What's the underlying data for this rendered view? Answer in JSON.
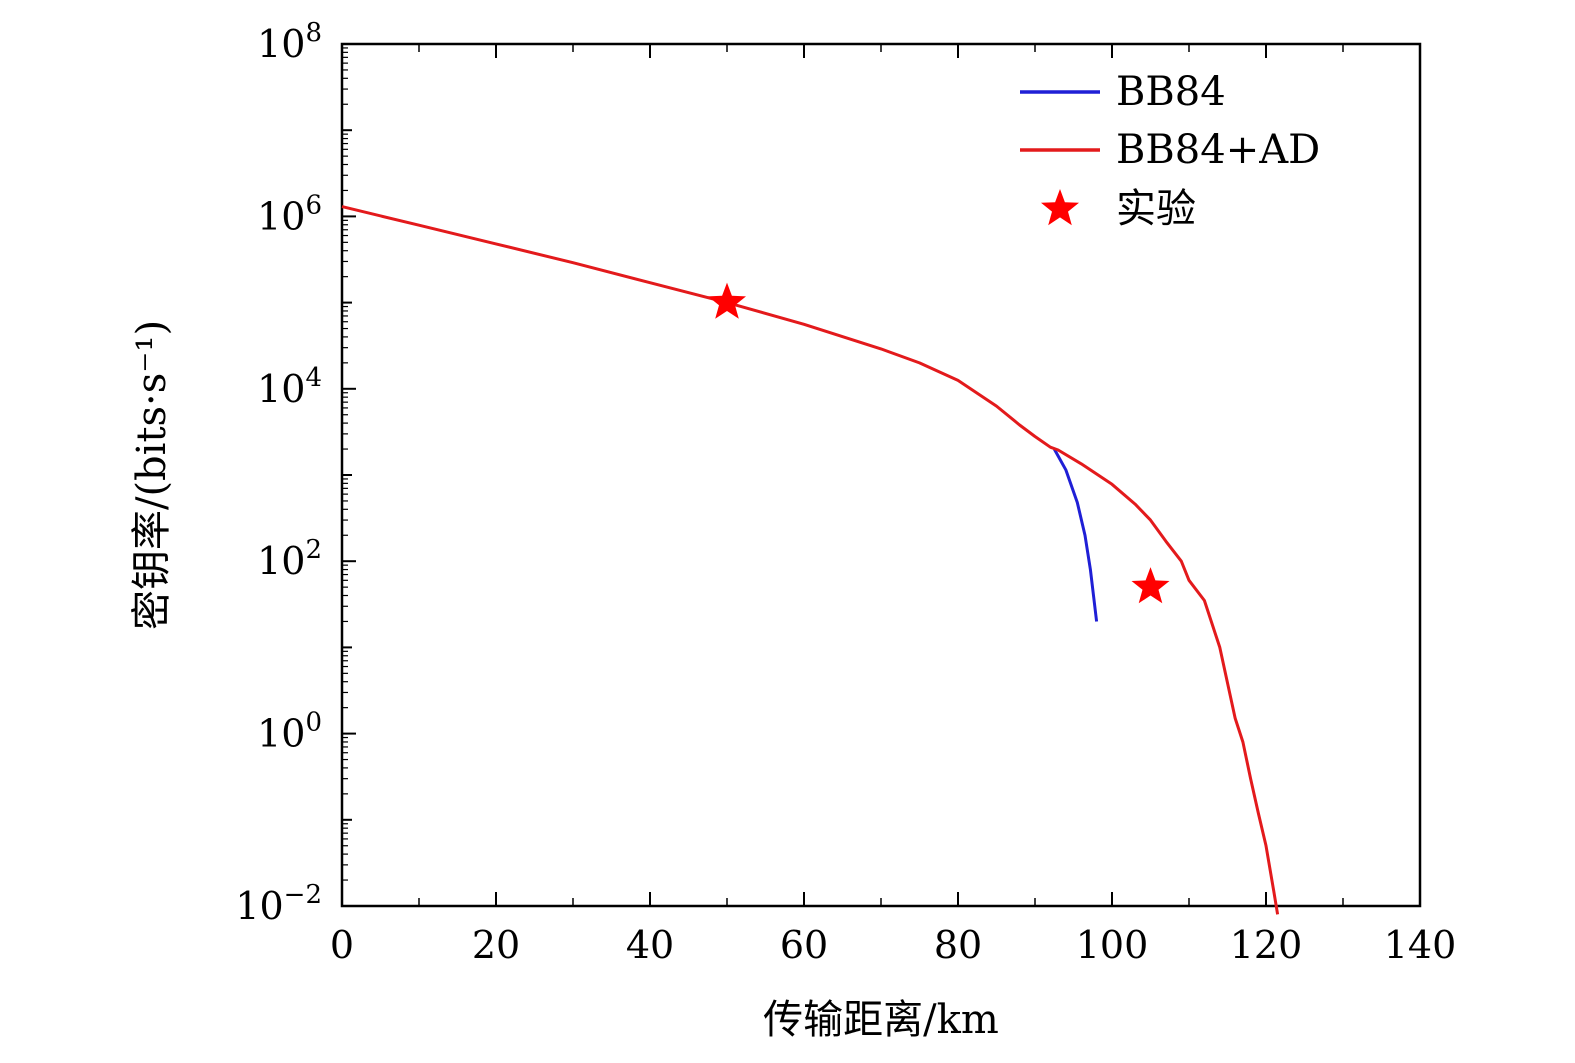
{
  "chart_data": {
    "type": "line",
    "title": "",
    "xlabel": "传输距离/km",
    "ylabel": "密钥率/(bits·s⁻¹)",
    "xlim": [
      0,
      140
    ],
    "ylim_log10": [
      -2,
      8
    ],
    "y_scale": "log",
    "grid": false,
    "legend_position": "top-right",
    "x_ticks": [
      "0",
      "20",
      "40",
      "60",
      "80",
      "100",
      "120",
      "140"
    ],
    "y_ticks": [
      {
        "base": "10",
        "exp": "−2",
        "log10": -2
      },
      {
        "base": "10",
        "exp": "0",
        "log10": 0
      },
      {
        "base": "10",
        "exp": "2",
        "log10": 2
      },
      {
        "base": "10",
        "exp": "4",
        "log10": 4
      },
      {
        "base": "10",
        "exp": "6",
        "log10": 6
      },
      {
        "base": "10",
        "exp": "8",
        "log10": 8
      }
    ],
    "series": [
      {
        "name": "BB84",
        "color": "#1f1fd6",
        "x": [
          92.5,
          94,
          95.5,
          96.5,
          97.2,
          97.6,
          98.0
        ],
        "y": [
          2000,
          1150,
          480,
          200,
          80,
          40,
          20
        ]
      },
      {
        "name": "BB84+AD",
        "color": "#e31a1c",
        "x": [
          0,
          10,
          20,
          30,
          40,
          50,
          60,
          70,
          75,
          80,
          85,
          88,
          90,
          92,
          93,
          96,
          100,
          103,
          105,
          107,
          109,
          110,
          112,
          114,
          116,
          117,
          118,
          119,
          120,
          121,
          121.5
        ],
        "y": [
          1300000,
          790000,
          480000,
          290000,
          170000,
          100000,
          56000,
          29000,
          20000,
          12500,
          6300,
          3800,
          2800,
          2100,
          1950,
          1350,
          780,
          460,
          300,
          170,
          100,
          60,
          35,
          10,
          1.5,
          0.8,
          0.3,
          0.12,
          0.05,
          0.015,
          0.008
        ]
      }
    ],
    "points": {
      "name": "实验",
      "color": "#ff0000",
      "x": [
        50,
        105
      ],
      "y": [
        100000,
        50
      ]
    }
  }
}
